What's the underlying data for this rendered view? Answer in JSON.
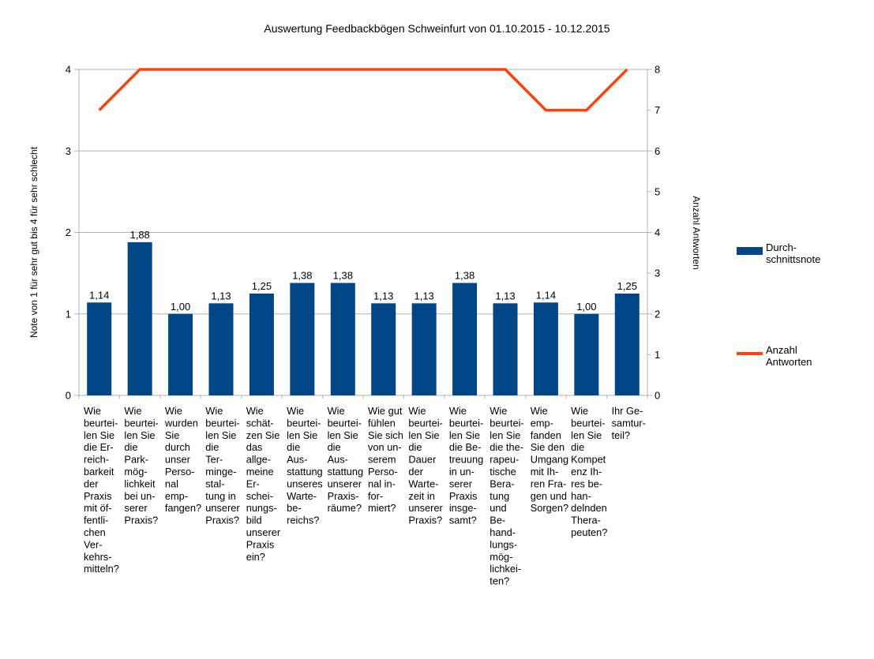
{
  "title": "Auswertung Feedbackbögen Schweinfurt von 01.10.2015 - 10.12.2015",
  "legend": {
    "bar_label": "Durch-\nschnittsnote",
    "line_label": "Anzahl\nAntworten"
  },
  "colors": {
    "bar": "#004586",
    "line": "#FF420E",
    "grid": "#b3b3b3",
    "axis": "#b3b3b3",
    "text": "#000000"
  },
  "chart_data": {
    "type": "bar",
    "subtype": "combo-bar-line",
    "title": "Auswertung Feedbackbögen Schweinfurt von 01.10.2015 - 10.12.2015",
    "grid": "horizontal",
    "legend_position": "right",
    "categories": [
      "Wie beurteilen Sie die Erreichbarkeit der Praxis mit öffentlichen Verkehrsmitteln?",
      "Wie beurteilen Sie die Parkmöglichkeit bei unserer Praxis?",
      "Wie wurden Sie durch unser Personal empfangen?",
      "Wie beurteilen Sie die Termingestaltung in unserer Praxis?",
      "Wie schätzen Sie das allgemeine Erscheinungsbild unserer Praxis ein?",
      "Wie beurteilen Sie die Ausstattung unseres Wartebereichs?",
      "Wie beurteilen Sie die Ausstattung unserer Praxisräume?",
      "Wie gut fühlen Sie sich von unserem Personal informiert?",
      "Wie beurteilen Sie die Dauer der Wartezeit in unserer Praxis?",
      "Wie beurteilen Sie die Betreuung in unserer Praxis insgesamt?",
      "Wie beurteilen Sie die therapeutische Beratung und Behandlungsmöglichkeiten?",
      "Wie empfanden Sie den Umgang mit Ihren Fragen und Sorgen?",
      "Wie beurteilen Sie die Kompetenz Ihres behandelnden Therapeuten?",
      "Ihr Gesamturteil?"
    ],
    "category_lines": [
      [
        "Wie",
        "beurtei-",
        "len Sie",
        "die Er-",
        "reich-",
        "barkeit",
        "der",
        "Praxis",
        "mit öf-",
        "fentli-",
        "chen",
        "Ver-",
        "kehrs-",
        "mitteln?"
      ],
      [
        "Wie",
        "beurtei-",
        "len Sie",
        "die",
        "Park-",
        "mög-",
        "lichkeit",
        "bei un-",
        "serer",
        "Praxis?"
      ],
      [
        "Wie",
        "wurden",
        "Sie",
        "durch",
        "unser",
        "Perso-",
        "nal",
        "emp-",
        "fangen?"
      ],
      [
        "Wie",
        "beurtei-",
        "len Sie",
        "die",
        "Ter-",
        "minge-",
        "stal-",
        "tung in",
        "unserer",
        "Praxis?"
      ],
      [
        "Wie",
        "schät-",
        "zen Sie",
        "das",
        "allge-",
        "meine",
        "Er-",
        "schei-",
        "nungs-",
        "bild",
        "unserer",
        "Praxis",
        "ein?"
      ],
      [
        "Wie",
        "beurtei-",
        "len Sie",
        "die",
        "Aus-",
        "stattung",
        "unseres",
        "Warte-",
        "be-",
        "reichs?"
      ],
      [
        "Wie",
        "beurtei-",
        "len Sie",
        "die",
        "Aus-",
        "stattung",
        "unserer",
        "Praxis-",
        "räume?"
      ],
      [
        "Wie gut",
        "fühlen",
        "Sie sich",
        "von un-",
        "serem",
        "Perso-",
        "nal in-",
        "for-",
        "miert?"
      ],
      [
        "Wie",
        "beurtei-",
        "len Sie",
        "die",
        "Dauer",
        "der",
        "Warte-",
        "zeit in",
        "unserer",
        "Praxis?"
      ],
      [
        "Wie",
        "beurtei-",
        "len Sie",
        "die Be-",
        "treuung",
        "in un-",
        "serer",
        "Praxis",
        "insge-",
        "samt?"
      ],
      [
        "Wie",
        "beurtei-",
        "len Sie",
        "die the-",
        "rapeu-",
        "tische",
        "Bera-",
        "tung",
        "und",
        "Be-",
        "hand-",
        "lungs-",
        "mög-",
        "lichkei-",
        "ten?"
      ],
      [
        "Wie",
        "emp-",
        "fanden",
        "Sie den",
        "Umgang",
        "mit Ih-",
        "ren Fra-",
        "gen und",
        "Sorgen?"
      ],
      [
        "Wie",
        "beurtei-",
        "len Sie",
        "die",
        "Kompet",
        "enz Ih-",
        "res be-",
        "han-",
        "delnden",
        "Thera-",
        "peuten?"
      ],
      [
        "Ihr Ge-",
        "samtur-",
        "teil?"
      ]
    ],
    "series": [
      {
        "name": "Durchschnittsnote",
        "type": "bar",
        "axis": "left",
        "color": "#004586",
        "values": [
          1.14,
          1.88,
          1.0,
          1.13,
          1.25,
          1.38,
          1.38,
          1.13,
          1.13,
          1.38,
          1.13,
          1.14,
          1.0,
          1.25
        ],
        "labels": [
          "1,14",
          "1,88",
          "1,00",
          "1,13",
          "1,25",
          "1,38",
          "1,38",
          "1,13",
          "1,13",
          "1,38",
          "1,13",
          "1,14",
          "1,00",
          "1,25"
        ]
      },
      {
        "name": "Anzahl Antworten",
        "type": "line",
        "axis": "right",
        "color": "#FF420E",
        "values": [
          7,
          8,
          8,
          8,
          8,
          8,
          8,
          8,
          8,
          8,
          8,
          7,
          7,
          8
        ]
      }
    ],
    "left_axis": {
      "label": "Note von 1 für sehr gut bis 4 für sehr schlecht",
      "range": [
        0,
        4
      ],
      "ticks": [
        "0",
        "1",
        "2",
        "3",
        "4"
      ]
    },
    "right_axis": {
      "label": "Anzahl Antworten",
      "range": [
        0,
        8
      ],
      "ticks": [
        "0",
        "1",
        "2",
        "3",
        "4",
        "5",
        "6",
        "7",
        "8"
      ]
    }
  }
}
